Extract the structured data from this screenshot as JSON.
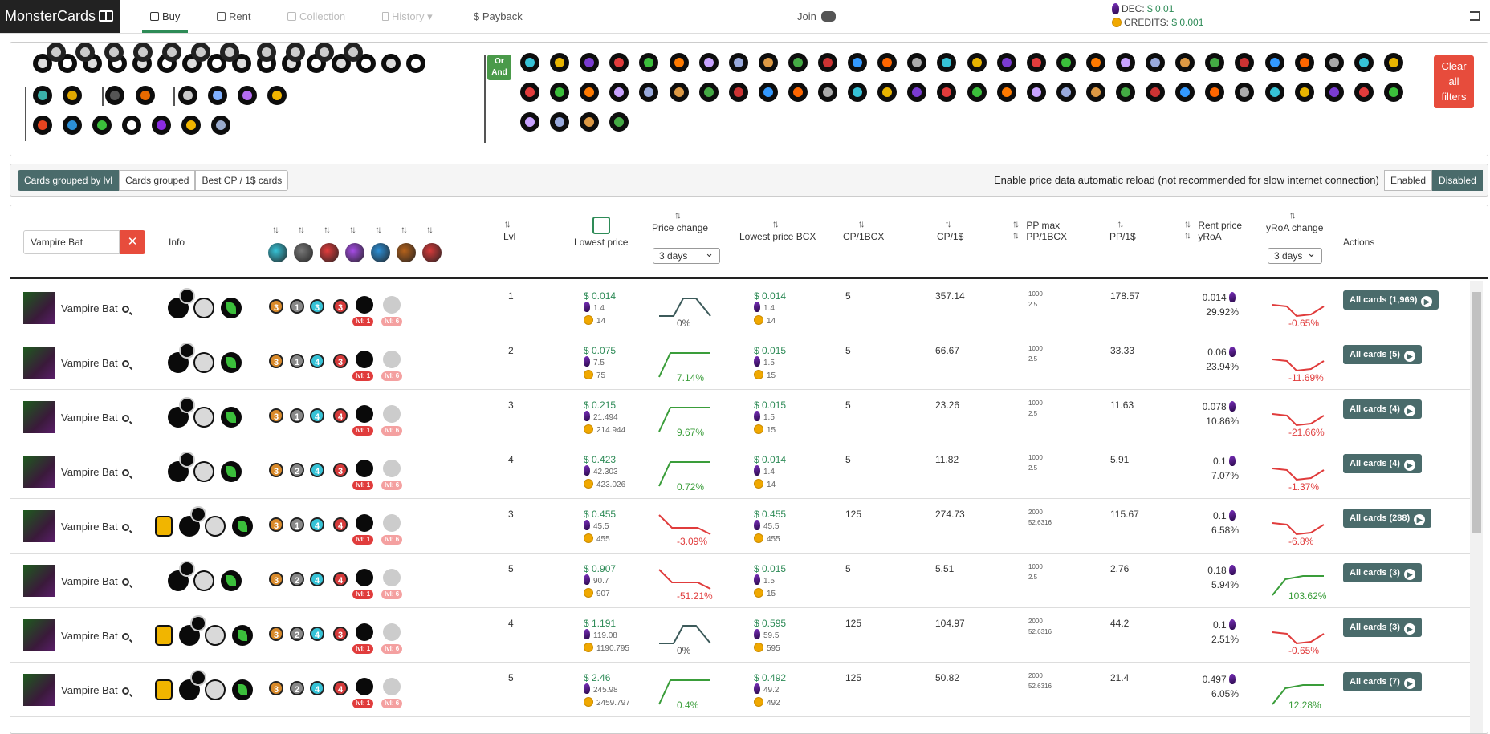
{
  "app": {
    "title": "MonsterCards"
  },
  "nav": [
    {
      "label": "Buy",
      "active": true
    },
    {
      "label": "Rent"
    },
    {
      "label": "Collection",
      "disabled": true
    },
    {
      "label": "History",
      "disabled": true
    },
    {
      "label": "Payback"
    }
  ],
  "join": {
    "label": "Join"
  },
  "balance": {
    "dec_label": "DEC:",
    "dec_value": "$ 0.01",
    "credits_label": "CREDITS:",
    "credits_value": "$ 0.001"
  },
  "filters": {
    "or_label": "Or",
    "and_label": "And",
    "clear_label": "Clear all filters",
    "clear_lines": [
      "Clear",
      "all",
      "filters"
    ]
  },
  "view_tabs": [
    "Cards grouped by lvl",
    "Cards grouped",
    "Best CP / 1$ cards"
  ],
  "reload": {
    "label": "Enable price data automatic reload (not recommended for slow internet connection)",
    "options": [
      "Enabled",
      "Disabled"
    ],
    "selected": "Disabled"
  },
  "table": {
    "search_value": "Vampire Bat",
    "headers": {
      "info": "Info",
      "lvl": "Lvl",
      "lowest_price": "Lowest price",
      "price_change": "Price change",
      "price_change_period": "3 days",
      "lowest_bcx": "Lowest price BCX",
      "cp_bcx": "CP/1BCX",
      "cp_usd": "CP/1$",
      "pp_max": "PP max",
      "pp_bcx": "PP/1BCX",
      "pp_usd": "PP/1$",
      "rent_price": "Rent price",
      "yroa": "yRoA",
      "yroa_change": "yRoA change",
      "yroa_period": "3 days",
      "actions": "Actions"
    },
    "rows": [
      {
        "name": "Vampire Bat",
        "lvl": "1",
        "stats": [
          "3",
          "1",
          "3",
          "3"
        ],
        "price": "$ 0.014",
        "dec": "1.4",
        "credits": "14",
        "change": "0%",
        "trend": "flat",
        "bcx": "$ 0.014",
        "bcx_dec": "1.4",
        "bcx_cr": "14",
        "cp_bcx": "5",
        "cp_usd": "357.14",
        "pp_max": "1000",
        "pp_bcx": "2.5",
        "pp_usd": "178.57",
        "rent": "0.014",
        "yroa": "29.92%",
        "yroa_change": "-0.65%",
        "ytrend": "dn",
        "all": "All cards (1,969)",
        "gold": false
      },
      {
        "name": "Vampire Bat",
        "lvl": "2",
        "stats": [
          "3",
          "1",
          "4",
          "3"
        ],
        "price": "$ 0.075",
        "dec": "7.5",
        "credits": "75",
        "change": "7.14%",
        "trend": "up",
        "bcx": "$ 0.015",
        "bcx_dec": "1.5",
        "bcx_cr": "15",
        "cp_bcx": "5",
        "cp_usd": "66.67",
        "pp_max": "1000",
        "pp_bcx": "2.5",
        "pp_usd": "33.33",
        "rent": "0.06",
        "yroa": "23.94%",
        "yroa_change": "-11.69%",
        "ytrend": "dn",
        "all": "All cards (5)",
        "gold": false
      },
      {
        "name": "Vampire Bat",
        "lvl": "3",
        "stats": [
          "3",
          "1",
          "4",
          "4"
        ],
        "price": "$ 0.215",
        "dec": "21.494",
        "credits": "214.944",
        "change": "9.67%",
        "trend": "up",
        "bcx": "$ 0.015",
        "bcx_dec": "1.5",
        "bcx_cr": "15",
        "cp_bcx": "5",
        "cp_usd": "23.26",
        "pp_max": "1000",
        "pp_bcx": "2.5",
        "pp_usd": "11.63",
        "rent": "0.078",
        "yroa": "10.86%",
        "yroa_change": "-21.66%",
        "ytrend": "dn",
        "all": "All cards (4)",
        "gold": false
      },
      {
        "name": "Vampire Bat",
        "lvl": "4",
        "stats": [
          "3",
          "2",
          "4",
          "3"
        ],
        "price": "$ 0.423",
        "dec": "42.303",
        "credits": "423.026",
        "change": "0.72%",
        "trend": "up",
        "bcx": "$ 0.014",
        "bcx_dec": "1.4",
        "bcx_cr": "14",
        "cp_bcx": "5",
        "cp_usd": "11.82",
        "pp_max": "1000",
        "pp_bcx": "2.5",
        "pp_usd": "5.91",
        "rent": "0.1",
        "yroa": "7.07%",
        "yroa_change": "-1.37%",
        "ytrend": "dn",
        "all": "All cards (4)",
        "gold": false
      },
      {
        "name": "Vampire Bat",
        "lvl": "3",
        "stats": [
          "3",
          "1",
          "4",
          "4"
        ],
        "price": "$ 0.455",
        "dec": "45.5",
        "credits": "455",
        "change": "-3.09%",
        "trend": "dn",
        "bcx": "$ 0.455",
        "bcx_dec": "45.5",
        "bcx_cr": "455",
        "cp_bcx": "125",
        "cp_usd": "274.73",
        "pp_max": "2000",
        "pp_bcx": "52.6316",
        "pp_usd": "115.67",
        "rent": "0.1",
        "yroa": "6.58%",
        "yroa_change": "-6.8%",
        "ytrend": "dn",
        "all": "All cards (288)",
        "gold": true
      },
      {
        "name": "Vampire Bat",
        "lvl": "5",
        "stats": [
          "3",
          "2",
          "4",
          "4"
        ],
        "price": "$ 0.907",
        "dec": "90.7",
        "credits": "907",
        "change": "-51.21%",
        "trend": "dn",
        "bcx": "$ 0.015",
        "bcx_dec": "1.5",
        "bcx_cr": "15",
        "cp_bcx": "5",
        "cp_usd": "5.51",
        "pp_max": "1000",
        "pp_bcx": "2.5",
        "pp_usd": "2.76",
        "rent": "0.18",
        "yroa": "5.94%",
        "yroa_change": "103.62%",
        "ytrend": "up",
        "all": "All cards (3)",
        "gold": false
      },
      {
        "name": "Vampire Bat",
        "lvl": "4",
        "stats": [
          "3",
          "2",
          "4",
          "3"
        ],
        "price": "$ 1.191",
        "dec": "119.08",
        "credits": "1190.795",
        "change": "0%",
        "trend": "flat",
        "bcx": "$ 0.595",
        "bcx_dec": "59.5",
        "bcx_cr": "595",
        "cp_bcx": "125",
        "cp_usd": "104.97",
        "pp_max": "2000",
        "pp_bcx": "52.6316",
        "pp_usd": "44.2",
        "rent": "0.1",
        "yroa": "2.51%",
        "yroa_change": "-0.65%",
        "ytrend": "dn",
        "all": "All cards (3)",
        "gold": true
      },
      {
        "name": "Vampire Bat",
        "lvl": "5",
        "stats": [
          "3",
          "2",
          "4",
          "4"
        ],
        "price": "$ 2.46",
        "dec": "245.98",
        "credits": "2459.797",
        "change": "0.4%",
        "trend": "up",
        "bcx": "$ 0.492",
        "bcx_dec": "49.2",
        "bcx_cr": "492",
        "cp_bcx": "125",
        "cp_usd": "50.82",
        "pp_max": "2000",
        "pp_bcx": "52.6316",
        "pp_usd": "21.4",
        "rent": "0.497",
        "yroa": "6.05%",
        "yroa_change": "12.28%",
        "ytrend": "up",
        "all": "All cards (7)",
        "gold": true
      }
    ],
    "lvl_badge": "lvl: 1",
    "lvl_badge2": "lvl: 6"
  },
  "colors": {
    "accent": "#2e8b57",
    "danger": "#e74c3c",
    "btn": "#4a6b6b"
  }
}
